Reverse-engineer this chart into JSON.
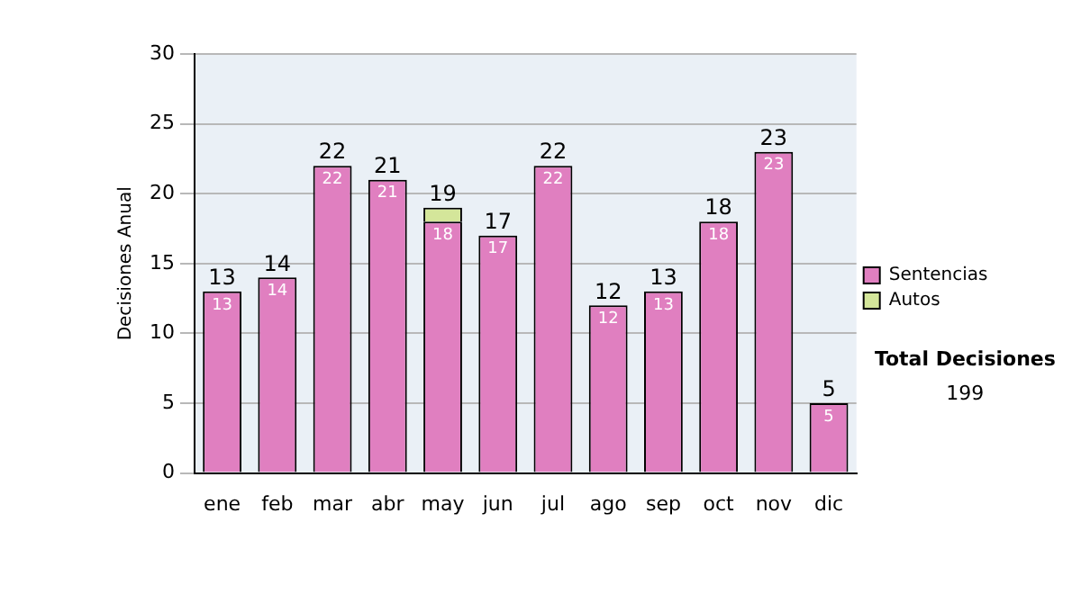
{
  "chart_data": {
    "type": "bar",
    "stacked": true,
    "ylabel": "Decisiones Anual",
    "categories": [
      "ene",
      "feb",
      "mar",
      "abr",
      "may",
      "jun",
      "jul",
      "ago",
      "sep",
      "oct",
      "nov",
      "dic"
    ],
    "series": [
      {
        "name": "Sentencias",
        "color": "#e07fc0",
        "values": [
          13,
          14,
          22,
          21,
          18,
          17,
          22,
          12,
          13,
          18,
          23,
          5
        ],
        "value_labels": [
          "13",
          "14",
          "22",
          "21",
          "18",
          "17",
          "22",
          "12",
          "13",
          "18",
          "23",
          "5"
        ]
      },
      {
        "name": "Autos",
        "color": "#d4e69a",
        "values": [
          0,
          0,
          0,
          0,
          1,
          0,
          0,
          0,
          0,
          0,
          0,
          0
        ]
      }
    ],
    "totals": [
      "13",
      "14",
      "22",
      "21",
      "19",
      "17",
      "22",
      "12",
      "13",
      "18",
      "23",
      "5"
    ],
    "ylim": [
      0,
      30
    ],
    "yticks": [
      0,
      5,
      10,
      15,
      20,
      25,
      30
    ],
    "grid": "y",
    "legend": "right",
    "annotations": [
      "Total Decisiones",
      "199"
    ]
  }
}
